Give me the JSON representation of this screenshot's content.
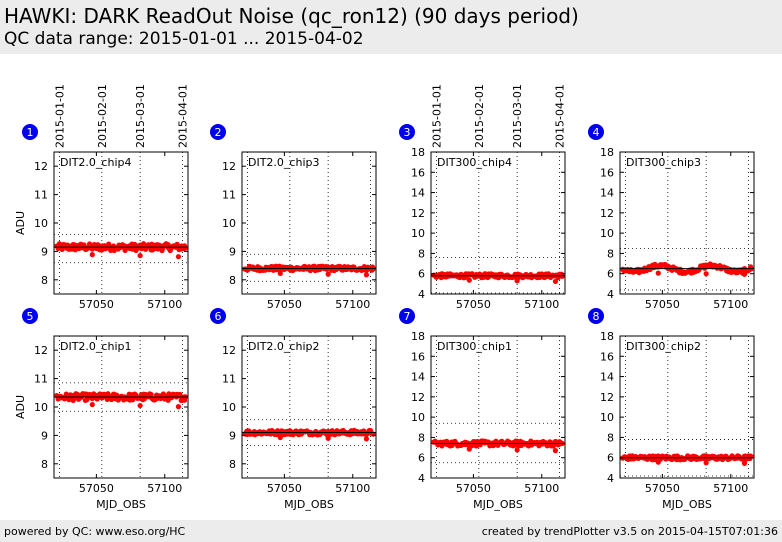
{
  "header": {
    "title": "HAWKI: DARK ReadOut Noise (qc_ron12) (90 days period)",
    "subtitle": "QC data range: 2015-01-01 ... 2015-04-02"
  },
  "footer": {
    "left": "powered by QC: www.eso.org/HC",
    "right": "created by trendPlotter v3.5 on 2015-04-15T07:01:36"
  },
  "colors": {
    "points": "#ff0000",
    "marker": "#0000ee",
    "header_bg": "#ececec"
  },
  "chart_data": {
    "type": "scatter",
    "xlabel": "MJD_OBS",
    "ylabel": "ADU",
    "date_ticks": [
      "2015-01-01",
      "2015-02-01",
      "2015-03-01",
      "2015-04-01"
    ],
    "date_tick_mjd": [
      57023,
      57054,
      57082,
      57113
    ],
    "xlim": [
      57019,
      57117
    ],
    "xticks": [
      57050,
      57100
    ],
    "panels": [
      {
        "id": "1",
        "label": "DIT2.0_chip4",
        "ylim": [
          7.5,
          12.5
        ],
        "yticks": [
          8,
          9,
          10,
          11,
          12
        ],
        "mean": 9.15,
        "band": [
          8.6,
          9.6
        ],
        "noise": 0.12,
        "wave": 0.0
      },
      {
        "id": "2",
        "label": "DIT2.0_chip3",
        "ylim": [
          7.5,
          12.5
        ],
        "yticks": [
          8,
          9,
          10,
          11,
          12
        ],
        "mean": 8.4,
        "band": [
          7.95,
          8.9
        ],
        "noise": 0.08,
        "wave": 0.0
      },
      {
        "id": "3",
        "label": "DIT300_chip4",
        "ylim": [
          4,
          18
        ],
        "yticks": [
          4,
          6,
          8,
          10,
          12,
          14,
          16,
          18
        ],
        "mean": 5.8,
        "band": [
          4.1,
          7.6
        ],
        "noise": 0.2,
        "wave": 0.0
      },
      {
        "id": "4",
        "label": "DIT300_chip3",
        "ylim": [
          4,
          18
        ],
        "yticks": [
          4,
          6,
          8,
          10,
          12,
          14,
          16,
          18
        ],
        "mean": 6.5,
        "band": [
          4.4,
          8.5
        ],
        "noise": 0.2,
        "wave": 0.3
      },
      {
        "id": "5",
        "label": "DIT2.0_chip1",
        "ylim": [
          7.5,
          12.5
        ],
        "yticks": [
          8,
          9,
          10,
          11,
          12
        ],
        "mean": 10.35,
        "band": [
          9.85,
          10.85
        ],
        "noise": 0.12,
        "wave": 0.0
      },
      {
        "id": "6",
        "label": "DIT2.0_chip2",
        "ylim": [
          7.5,
          12.5
        ],
        "yticks": [
          8,
          9,
          10,
          11,
          12
        ],
        "mean": 9.1,
        "band": [
          8.65,
          9.55
        ],
        "noise": 0.08,
        "wave": 0.0
      },
      {
        "id": "7",
        "label": "DIT300_chip1",
        "ylim": [
          4,
          18
        ],
        "yticks": [
          4,
          6,
          8,
          10,
          12,
          14,
          16,
          18
        ],
        "mean": 7.4,
        "band": [
          5.5,
          9.4
        ],
        "noise": 0.25,
        "wave": 0.0
      },
      {
        "id": "8",
        "label": "DIT300_chip2",
        "ylim": [
          4,
          18
        ],
        "yticks": [
          4,
          6,
          8,
          10,
          12,
          14,
          16,
          18
        ],
        "mean": 6.0,
        "band": [
          4.2,
          7.8
        ],
        "noise": 0.2,
        "wave": 0.0
      }
    ]
  }
}
